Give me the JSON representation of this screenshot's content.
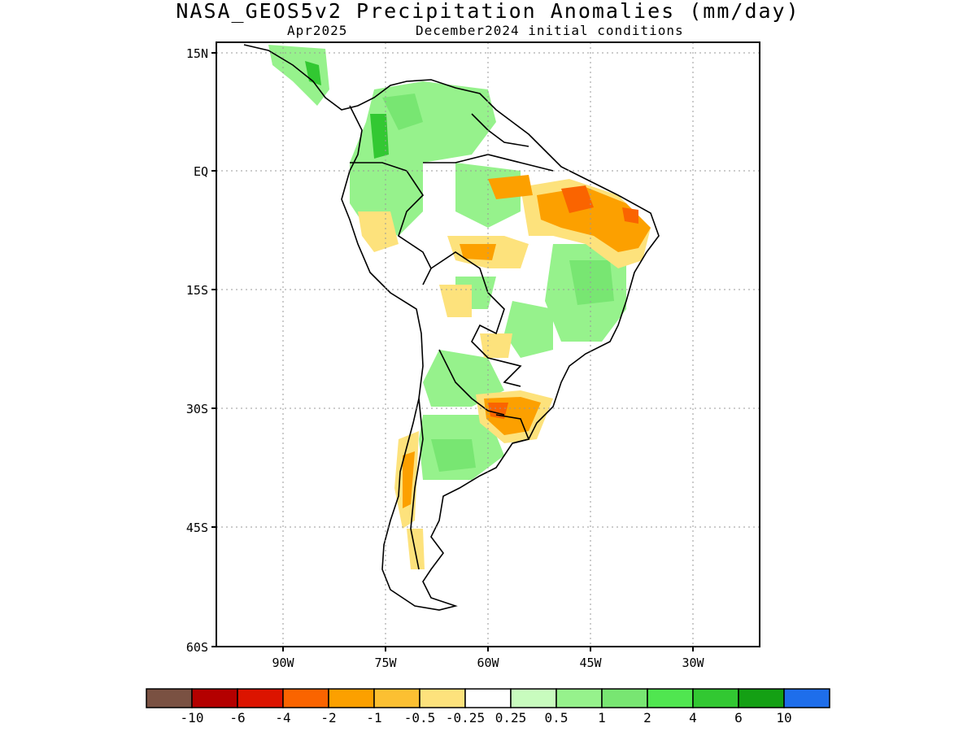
{
  "title": "NASA_GEOS5v2 Precipitation Anomalies (mm/day)",
  "subtitle_left": "Apr2025",
  "subtitle_right": "December2024 initial conditions",
  "axes": {
    "lat_ticks": [
      {
        "value": 15,
        "label": "15N"
      },
      {
        "value": 0,
        "label": "EQ"
      },
      {
        "value": -15,
        "label": "15S"
      },
      {
        "value": -30,
        "label": "30S"
      },
      {
        "value": -45,
        "label": "45S"
      },
      {
        "value": -60,
        "label": "60S"
      }
    ],
    "lon_ticks": [
      {
        "value": -90,
        "label": "90W"
      },
      {
        "value": -75,
        "label": "75W"
      },
      {
        "value": -60,
        "label": "60W"
      },
      {
        "value": -45,
        "label": "45W"
      },
      {
        "value": -30,
        "label": "30W"
      }
    ],
    "lon_range": [
      -100,
      -20
    ],
    "lat_range": [
      -60,
      15
    ],
    "grid": true
  },
  "colorbar": {
    "colors": [
      "#7a5142",
      "#b40000",
      "#dc1400",
      "#fa6400",
      "#fca000",
      "#fcc032",
      "#fde27c",
      "#ffffff",
      "#c8fcbe",
      "#96f28c",
      "#78e672",
      "#50e650",
      "#32c832",
      "#14a014",
      "#1e6eeb"
    ],
    "labels": [
      "-10",
      "-6",
      "-4",
      "-2",
      "-1",
      "-0.5",
      "-0.25",
      "0.25",
      "0.5",
      "1",
      "2",
      "4",
      "6",
      "10"
    ]
  },
  "legend_colors": {
    "dry_strong": "#fa6400",
    "dry_moderate": "#fca000",
    "dry_weak": "#fde27c",
    "wet_weak": "#c8fcbe",
    "wet_moderate": "#78e672",
    "wet_strong": "#32c832"
  }
}
